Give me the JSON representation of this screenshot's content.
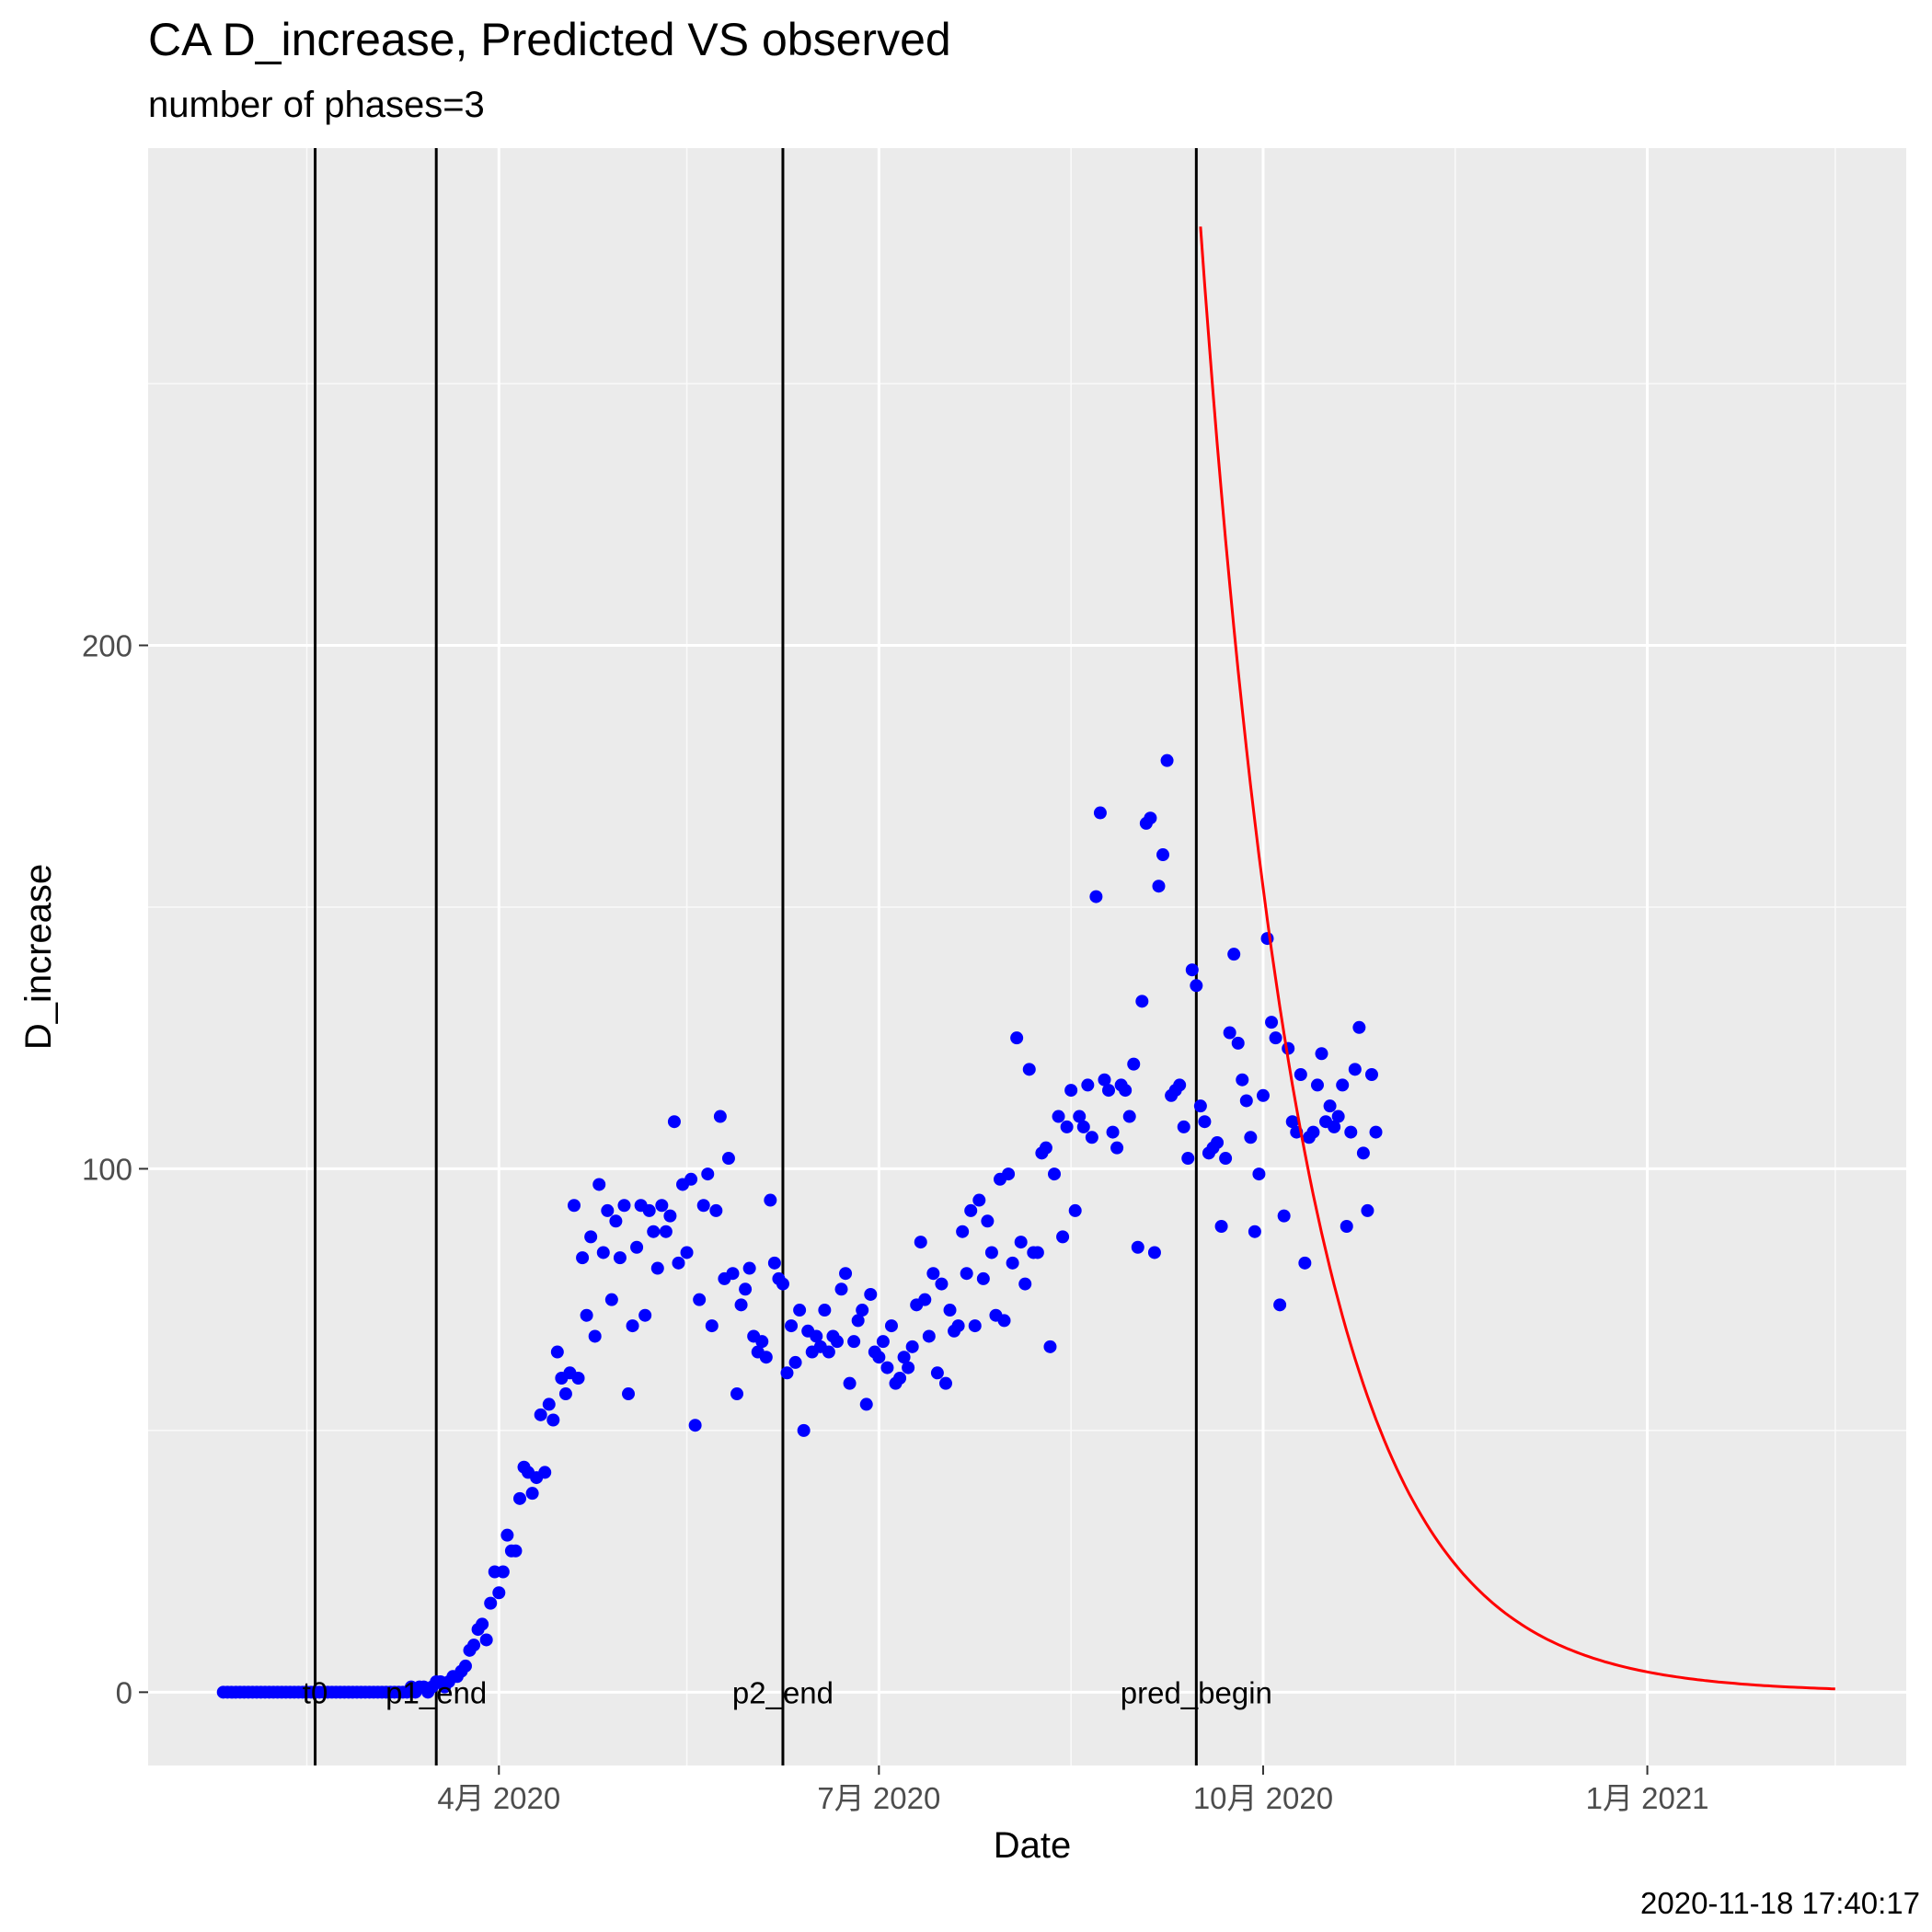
{
  "chart_data": {
    "type": "scatter",
    "title": "CA D_increase, Predicted VS observed",
    "subtitle": "number of phases=3",
    "xlabel": "Date",
    "ylabel": "D_increase",
    "caption": "2020-11-18 17:40:17",
    "ylim": [
      -14,
      295
    ],
    "xlim": [
      "2020-01-08",
      "2021-03-04"
    ],
    "x_ticks": [
      {
        "date": "2020-04-01",
        "label": "4月 2020"
      },
      {
        "date": "2020-07-01",
        "label": "7月 2020"
      },
      {
        "date": "2020-10-01",
        "label": "10月 2020"
      },
      {
        "date": "2021-01-01",
        "label": "1月 2021"
      }
    ],
    "x_minor_ticks": [
      "2020-02-15",
      "2020-05-16",
      "2020-08-16",
      "2020-11-16",
      "2021-02-15"
    ],
    "y_ticks": [
      0,
      100,
      200
    ],
    "y_minor_ticks": [
      50,
      150,
      250
    ],
    "grid": true,
    "background": "#ebebeb",
    "colors": {
      "observed": "#0000ff",
      "predicted": "#ff0000",
      "marker": "#000000"
    },
    "vlines": [
      {
        "date": "2020-02-17",
        "label": "t0"
      },
      {
        "date": "2020-03-17",
        "label": "p1_end"
      },
      {
        "date": "2020-06-08",
        "label": "p2_end"
      },
      {
        "date": "2020-09-15",
        "label": "pred_begin"
      }
    ],
    "series": [
      {
        "name": "observed",
        "kind": "points",
        "start_date": "2020-01-26",
        "values": [
          0,
          0,
          0,
          0,
          0,
          0,
          0,
          0,
          0,
          0,
          0,
          0,
          0,
          0,
          0,
          0,
          0,
          0,
          0,
          0,
          0,
          0,
          0,
          0,
          0,
          0,
          0,
          0,
          0,
          0,
          0,
          0,
          0,
          0,
          0,
          0,
          0,
          0,
          0,
          0,
          0,
          0,
          0,
          0,
          0,
          1,
          0,
          1,
          1,
          0,
          1,
          2,
          2,
          1,
          2,
          3,
          3,
          4,
          5,
          8,
          9,
          12,
          13,
          10,
          17,
          23,
          19,
          23,
          30,
          27,
          27,
          37,
          43,
          42,
          38,
          41,
          53,
          42,
          55,
          52,
          65,
          60,
          57,
          61,
          93,
          60,
          83,
          72,
          87,
          68,
          97,
          84,
          92,
          75,
          90,
          83,
          93,
          57,
          70,
          85,
          93,
          72,
          92,
          88,
          81,
          93,
          88,
          91,
          109,
          82,
          97,
          84,
          98,
          51,
          75,
          93,
          99,
          70,
          92,
          110,
          79,
          102,
          80,
          57,
          74,
          77,
          81,
          68,
          65,
          67,
          64,
          94,
          82,
          79,
          78,
          61,
          70,
          63,
          73,
          50,
          69,
          65,
          68,
          66,
          73,
          65,
          68,
          67,
          77,
          80,
          59,
          67,
          71,
          73,
          55,
          76,
          65,
          64,
          67,
          62,
          70,
          59,
          60,
          64,
          62,
          66,
          74,
          86,
          75,
          68,
          80,
          61,
          78,
          59,
          73,
          69,
          70,
          88,
          80,
          92,
          70,
          94,
          79,
          90,
          84,
          72,
          98,
          71,
          99,
          82,
          125,
          86,
          78,
          119,
          84,
          84,
          103,
          104,
          66,
          99,
          110,
          87,
          108,
          115,
          92,
          110,
          108,
          116,
          106,
          152,
          168,
          117,
          115,
          107,
          104,
          116,
          115,
          110,
          120,
          85,
          132,
          166,
          167,
          84,
          154,
          160,
          178,
          114,
          115,
          116,
          108,
          102,
          138,
          135,
          112,
          109,
          103,
          104,
          105,
          89,
          102,
          126,
          141,
          124,
          117,
          113,
          106,
          88,
          99,
          114,
          144,
          128,
          125,
          74,
          91,
          123,
          109,
          107,
          118,
          82,
          106,
          107,
          116,
          122,
          109,
          112,
          108,
          110,
          116,
          89,
          107,
          119,
          127,
          103,
          92,
          118,
          107
        ]
      },
      {
        "name": "predicted",
        "kind": "line",
        "start_date": "2020-09-16",
        "end_date": "2021-02-15",
        "start_value": 280,
        "decay_per_day": 0.04
      }
    ]
  }
}
